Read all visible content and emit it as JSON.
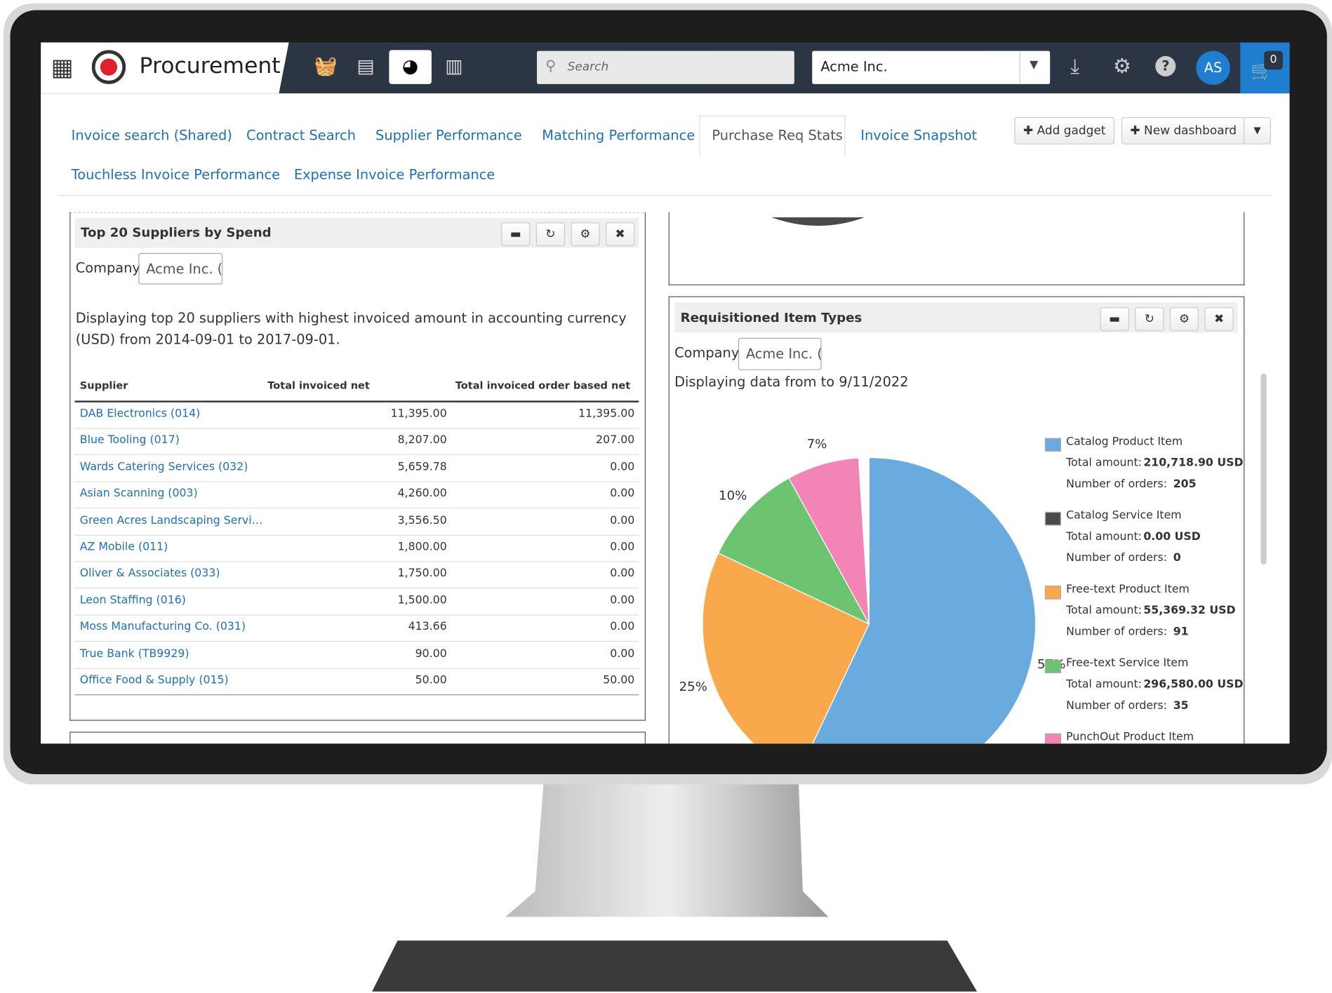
{
  "header": {
    "app_name": "Procurement",
    "search_placeholder": "Search",
    "company": "Acme Inc.",
    "avatar": "AS",
    "cart_count": 0
  },
  "tabs": [
    "Invoice search (Shared)",
    "Contract Search",
    "Supplier Performance",
    "Matching Performance",
    "Purchase Req Stats",
    "Invoice Snapshot",
    "Touchless Invoice Performance",
    "Expense Invoice Performance"
  ],
  "buttons": [
    "Add gadget",
    "New dashboard"
  ],
  "suppliers_gadget": {
    "title": "Top 20 Suppliers by Spend",
    "company_label": "Company",
    "company_value": "Acme Inc. (I",
    "description": "Displaying top 20 suppliers with highest invoiced amount in accounting currency (USD) from 2014-09-01 to 2017-09-01.",
    "table": {
      "columns": [
        "Supplier",
        "Total invoiced net",
        "Total invoiced order based net"
      ],
      "rows": [
        [
          "DAB Electronics (014)",
          "11,395.00",
          "11,395.00"
        ],
        [
          "Blue Tooling (017)",
          "8,207.00",
          "207.00"
        ],
        [
          "Wards Catering Services (032)",
          "5,659.78",
          "0.00"
        ],
        [
          "Asian Scanning (003)",
          "4,260.00",
          "0.00"
        ],
        [
          "Green Acres Landscaping Servi…",
          "3,556.50",
          "0.00"
        ],
        [
          "AZ Mobile (011)",
          "1,800.00",
          "0.00"
        ],
        [
          "Oliver & Associates (033)",
          "1,750.00",
          "0.00"
        ],
        [
          "Leon Staffing (016)",
          "1,500.00",
          "0.00"
        ],
        [
          "Moss Manufacturing Co. (031)",
          "413.66",
          "0.00"
        ],
        [
          "True Bank (TB9929)",
          "90.00",
          "0.00"
        ],
        [
          "Office Food & Supply (015)",
          "50.00",
          "50.00"
        ]
      ]
    }
  },
  "item_types_gadget": {
    "title": "Requisitioned Item Types",
    "company_label": "Company",
    "company_value": "Acme Inc. (I",
    "description": "Displaying data from to 9/11/2022",
    "details": [
      {
        "amount_label": "Total amount:",
        "amount": "210,718.90 USD",
        "orders_label": "Number of orders:",
        "orders": "205"
      },
      {
        "amount_label": "Total amount:",
        "amount": "0.00 USD",
        "orders_label": "Number of orders:",
        "orders": "0"
      },
      {
        "amount_label": "Total amount:",
        "amount": "55,369.32 USD",
        "orders_label": "Number of orders:",
        "orders": "91"
      },
      {
        "amount_label": "Total amount:",
        "amount": "296,580.00 USD",
        "orders_label": "Number of orders:",
        "orders": "35"
      }
    ]
  },
  "chart_data": {
    "type": "pie",
    "categories": [
      "Catalog Product Item",
      "Catalog Service Item",
      "Free-text Product Item",
      "Free-text Service Item",
      "PunchOut Product Item"
    ],
    "values": [
      57,
      0,
      25,
      10,
      7
    ],
    "value_labels": [
      "57%",
      null,
      "25%",
      "10%",
      "7%"
    ],
    "colors": [
      "#6aabdf",
      "#4a4a4a",
      "#f9a94b",
      "#6cc470",
      "#f284b6"
    ]
  }
}
